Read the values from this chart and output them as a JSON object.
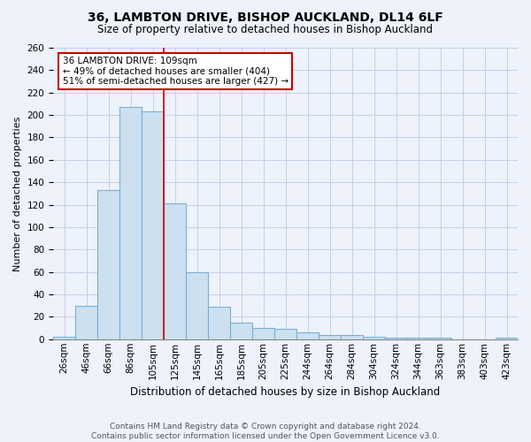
{
  "title": "36, LAMBTON DRIVE, BISHOP AUCKLAND, DL14 6LF",
  "subtitle": "Size of property relative to detached houses in Bishop Auckland",
  "xlabel": "Distribution of detached houses by size in Bishop Auckland",
  "ylabel": "Number of detached properties",
  "bin_labels": [
    "26sqm",
    "46sqm",
    "66sqm",
    "86sqm",
    "105sqm",
    "125sqm",
    "145sqm",
    "165sqm",
    "185sqm",
    "205sqm",
    "225sqm",
    "244sqm",
    "264sqm",
    "284sqm",
    "304sqm",
    "324sqm",
    "344sqm",
    "363sqm",
    "383sqm",
    "403sqm",
    "423sqm"
  ],
  "bar_values": [
    2,
    30,
    133,
    207,
    203,
    121,
    60,
    29,
    15,
    10,
    9,
    6,
    4,
    4,
    2,
    1,
    1,
    1,
    0,
    0,
    1
  ],
  "bar_color": "#cce0f0",
  "bar_edge_color": "#7ab0d4",
  "highlight_line_color": "#cc0000",
  "annotation_line1": "36 LAMBTON DRIVE: 109sqm",
  "annotation_line2": "← 49% of detached houses are smaller (404)",
  "annotation_line3": "51% of semi-detached houses are larger (427) →",
  "annotation_box_color": "white",
  "annotation_box_edge_color": "#cc0000",
  "ylim": [
    0,
    260
  ],
  "yticks": [
    0,
    20,
    40,
    60,
    80,
    100,
    120,
    140,
    160,
    180,
    200,
    220,
    240,
    260
  ],
  "footer_line1": "Contains HM Land Registry data © Crown copyright and database right 2024.",
  "footer_line2": "Contains public sector information licensed under the Open Government Licence v3.0.",
  "bg_color": "#edf2fb",
  "grid_color": "#c5cfe8",
  "title_fontsize": 10,
  "subtitle_fontsize": 8.5,
  "xlabel_fontsize": 8.5,
  "ylabel_fontsize": 8,
  "tick_fontsize": 7.5,
  "annotation_fontsize": 7.5,
  "footer_fontsize": 6.5
}
